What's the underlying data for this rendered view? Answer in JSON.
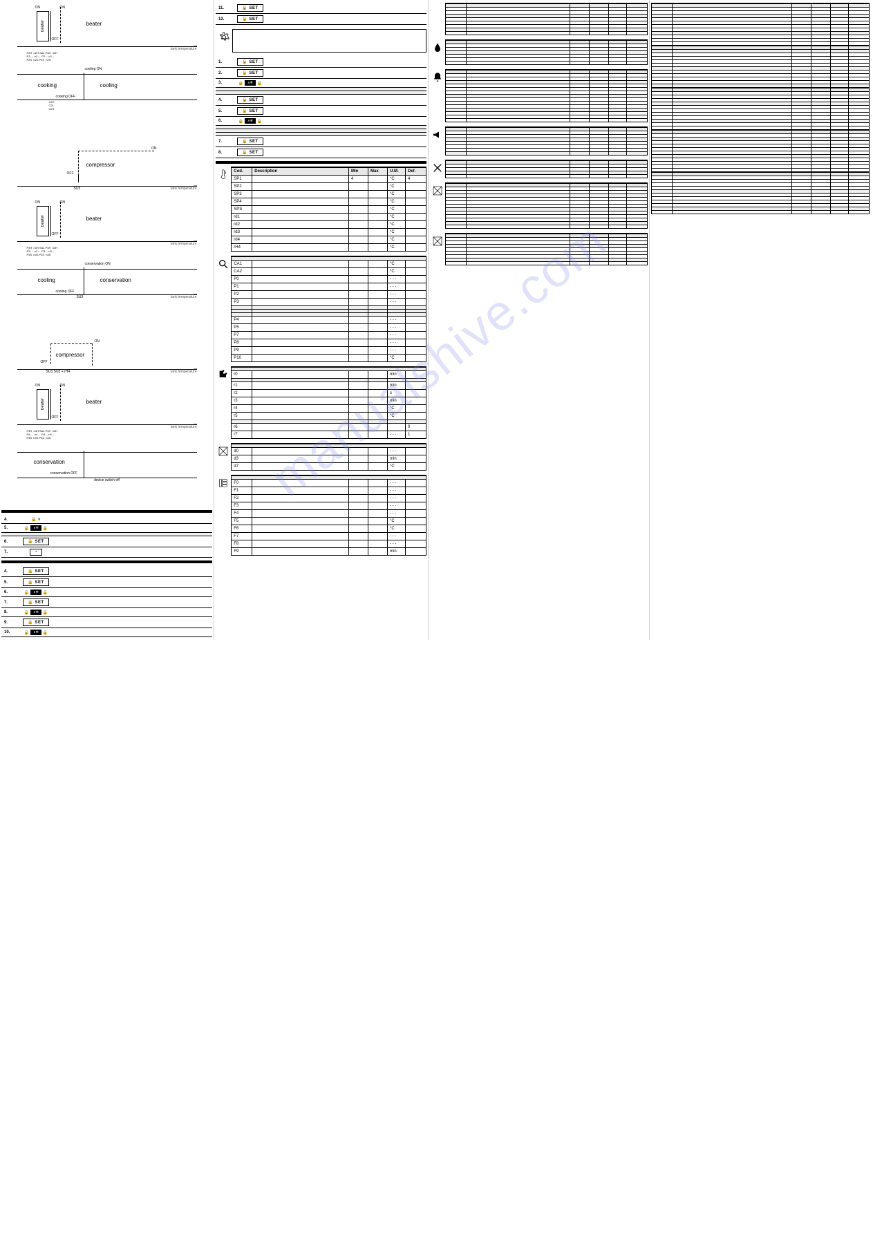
{
  "watermark_text": "manualshive.com",
  "axis_label": "tank temperature",
  "set_button": "🔒 SET",
  "clock_glyph": "◔",
  "diagrams": {
    "d1": {
      "left_box": "beater",
      "right_label": "beater",
      "on": "ON",
      "off": "OFF",
      "onr": "ON",
      "ticks": "P2H  n2H SA1 P3H  n3H\nP2↔  n2↔  P2↔ n2↔\nP2S  n2S P2S  n2S"
    },
    "d2": {
      "left_label": "cooking",
      "right_label": "cooling",
      "top": "cooling ON",
      "bot": "cooking OFF",
      "ticks": "C2H\nC21\nC2S"
    },
    "d3": {
      "box": "compressor",
      "on": "ON",
      "off": "OFF",
      "tick": "SU3"
    },
    "d4": {
      "left_box": "beater",
      "right_label": "beater",
      "on": "ON",
      "off": "OFF",
      "ticks": "P3H  n3H SA1 P3H  n3H\nP3↔  n3↔  P3↔ n3↔\nP3S  n3S P3S  n3S"
    },
    "d5": {
      "left_label": "cooling",
      "right_label": "conservation",
      "top": "conservation ON",
      "bot": "cooling OFF",
      "tick": "SU3"
    },
    "d6": {
      "box": "compressor",
      "on": "ON",
      "off": "OFF",
      "ticks": "SU3      SU3 + rH4"
    },
    "d7": {
      "left_box": "beater",
      "right_label": "beater",
      "on": "ON",
      "off": "OFF",
      "ticks": "P4H  n4H SA1 P4H  n4H\nP4↔  n4↔  P4↔ n4↔\nP4S  n4S P4S  n4S"
    },
    "d8": {
      "label": "conservation",
      "bot": "conservation OFF",
      "note": "device switch-off"
    }
  },
  "steps_a": [
    {
      "n": "4.",
      "btn": "keys",
      "text": ""
    },
    {
      "n": "5.",
      "btn": "keys4",
      "text": ""
    },
    {
      "n": "",
      "btn": "",
      "text": "",
      "shade": true
    },
    {
      "n": "6.",
      "btn": "set",
      "text": ""
    },
    {
      "n": "7.",
      "btn": "clock",
      "text": ""
    }
  ],
  "steps_b": [
    {
      "n": "4.",
      "btn": "set"
    },
    {
      "n": "5.",
      "btn": "set"
    },
    {
      "n": "6.",
      "btn": "keys4"
    },
    {
      "n": "7.",
      "btn": "set"
    },
    {
      "n": "8.",
      "btn": "keys4"
    },
    {
      "n": "9.",
      "btn": "set"
    },
    {
      "n": "10.",
      "btn": "keys4"
    }
  ],
  "col2_top": [
    {
      "n": "11.",
      "btn": "set"
    },
    {
      "n": "12.",
      "btn": "set"
    }
  ],
  "col2_b": [
    {
      "n": "1.",
      "btn": "set"
    },
    {
      "n": "2.",
      "btn": "set"
    },
    {
      "n": "3.",
      "btn": "keys4"
    },
    {
      "n": "",
      "shade": true
    },
    {
      "n": "",
      "shade": true
    },
    {
      "n": "4.",
      "btn": "set"
    },
    {
      "n": "5.",
      "btn": "set"
    },
    {
      "n": "6.",
      "btn": "keys4"
    },
    {
      "n": "",
      "shade": true
    },
    {
      "n": "",
      "shade": true
    },
    {
      "n": "",
      "shade": true
    },
    {
      "n": "7.",
      "btn": "set"
    },
    {
      "n": "8.",
      "btn": "set"
    }
  ],
  "param_sections": {
    "therm": {
      "icon": "therm",
      "header": [
        "Cod.",
        "Description",
        "Min",
        "Max",
        "U.M.",
        "Def."
      ],
      "rows": [
        [
          "SP1",
          "",
          "4",
          "",
          "°C",
          "4"
        ],
        [
          "SP2",
          "",
          "",
          "",
          "°C",
          ""
        ],
        [
          "SP3",
          "",
          "",
          "",
          "°C",
          ""
        ],
        [
          "SP4",
          "",
          "",
          "",
          "°C",
          ""
        ],
        [
          "SPS",
          "",
          "",
          "",
          "°C",
          ""
        ],
        [
          "rd1",
          "",
          "",
          "",
          "°C",
          ""
        ],
        [
          "rd2",
          "",
          "",
          "",
          "°C",
          ""
        ],
        [
          "rd3",
          "",
          "",
          "",
          "°C",
          ""
        ],
        [
          "rd4",
          "",
          "",
          "",
          "°C",
          ""
        ],
        [
          "rH4",
          "",
          "",
          "",
          "°C",
          ""
        ]
      ]
    },
    "search": {
      "icon": "search",
      "rows": [
        [
          "CA1",
          "",
          "",
          "",
          "°C",
          ""
        ],
        [
          "CA2",
          "",
          "",
          "",
          "°C",
          ""
        ],
        [
          "P0",
          "",
          "",
          "",
          "- - -",
          ""
        ],
        [
          "P1",
          "",
          "",
          "",
          "- - -",
          ""
        ],
        [
          "P2",
          "",
          "",
          "",
          "- - -",
          ""
        ],
        [
          "P3",
          "",
          "",
          "",
          "- - -",
          ""
        ],
        [
          "",
          "",
          "",
          "",
          "",
          ""
        ],
        [
          "",
          "",
          "",
          "",
          "",
          ""
        ],
        [
          "",
          "",
          "",
          "",
          "",
          ""
        ],
        [
          "P4",
          "",
          "",
          "",
          "- - -",
          ""
        ],
        [
          "P5",
          "",
          "",
          "",
          "- - -",
          ""
        ],
        [
          "P7",
          "",
          "",
          "",
          "- - -",
          ""
        ],
        [
          "P8",
          "",
          "",
          "",
          "- - -",
          ""
        ],
        [
          "P9",
          "",
          "",
          "",
          "- - -",
          ""
        ],
        [
          "P10",
          "",
          "",
          "",
          "°C",
          ""
        ]
      ]
    },
    "puzzle": {
      "icon": "puzzle",
      "rows": [
        [
          "r0",
          "",
          "",
          "",
          "min",
          ""
        ],
        [
          "",
          "",
          "",
          "",
          "",
          ""
        ],
        [
          "r1",
          "",
          "",
          "",
          "min",
          ""
        ],
        [
          "r2",
          "",
          "",
          "",
          "s",
          ""
        ],
        [
          "r3",
          "",
          "",
          "",
          "min",
          ""
        ],
        [
          "r4",
          "",
          "",
          "",
          "°C",
          ""
        ],
        [
          "r5",
          "",
          "",
          "",
          "°C",
          ""
        ],
        [
          "",
          "",
          "",
          "",
          "",
          ""
        ],
        [
          "r6",
          "",
          "",
          "",
          "",
          "0"
        ],
        [
          "r7",
          "",
          "",
          "",
          "- - -",
          "1"
        ]
      ]
    },
    "mix": {
      "icon": "mix",
      "rows": [
        [
          "d0",
          "",
          "",
          "",
          "- - -",
          ""
        ],
        [
          "d3",
          "",
          "",
          "",
          "min",
          ""
        ],
        [
          "d7",
          "",
          "",
          "",
          "°C",
          ""
        ]
      ]
    },
    "fan": {
      "icon": "fan",
      "rows": [
        [
          "F0",
          "",
          "",
          "",
          "- - -",
          ""
        ],
        [
          "F1",
          "",
          "",
          "",
          "- - -",
          ""
        ],
        [
          "F2",
          "",
          "",
          "",
          "- - -",
          ""
        ],
        [
          "F3",
          "",
          "",
          "",
          "- - -",
          ""
        ],
        [
          "F4",
          "",
          "",
          "",
          "- - -",
          ""
        ],
        [
          "F5",
          "",
          "",
          "",
          "°C",
          ""
        ],
        [
          "F6",
          "",
          "",
          "",
          "°C",
          ""
        ],
        [
          "F7",
          "",
          "",
          "",
          "- - -",
          ""
        ],
        [
          "F8",
          "",
          "",
          "",
          "- - -",
          ""
        ],
        [
          "F9",
          "",
          "",
          "",
          "min",
          ""
        ]
      ]
    }
  },
  "col3_sections": {
    "s1": {
      "icon": "",
      "rows": 8
    },
    "s2": {
      "icon": "drop",
      "rows": 6
    },
    "s3": {
      "icon": "bell",
      "rows": 14
    },
    "s4": {
      "icon": "horn",
      "rows": 7
    },
    "s5": {
      "icon": "tools",
      "rows": 4
    },
    "s6": {
      "icon": "mix",
      "rows": 12
    },
    "s7": {
      "icon": "mix",
      "rows": 8
    }
  },
  "col4_rows": 60,
  "colors": {
    "bg": "#ffffff",
    "border": "#000000",
    "shade": "#f0f0f0",
    "watermark": "rgba(130,140,235,0.25)"
  }
}
